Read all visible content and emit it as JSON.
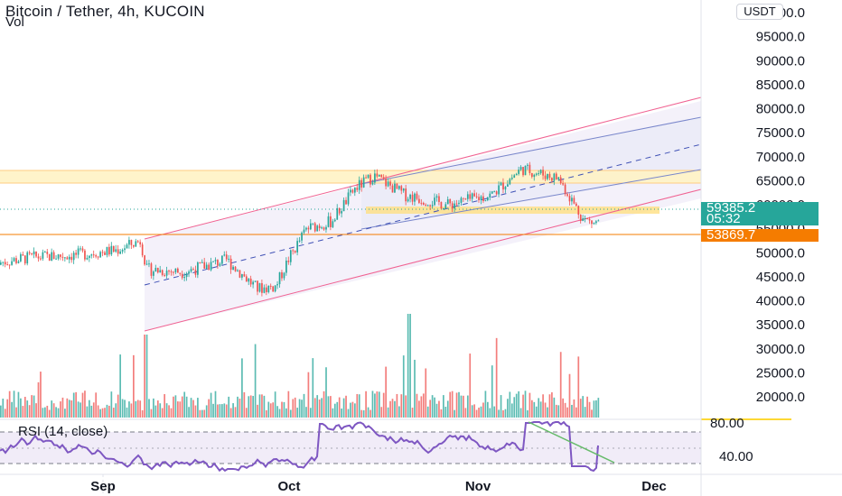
{
  "header": {
    "title": "Bitcoin / Tether, 4h, KUCOIN",
    "volume_label": "Vol",
    "currency": "USDT"
  },
  "rsi": {
    "label": "RSI (14, close)",
    "levels": [
      "80.00",
      "40.00"
    ]
  },
  "price_tags": {
    "last_price": "59385.2",
    "countdown": "05:32",
    "support_price": "53869.7"
  },
  "colors": {
    "up": "#26a69a",
    "down": "#ef5350",
    "rsi_line": "#7e57c2",
    "channel_line": "#f06292",
    "inner_channel": "#7986cb",
    "zone": "#ffe082",
    "support_line": "#f57c00",
    "trendline": "#66bb6a"
  },
  "chart_data": {
    "type": "candlestick",
    "symbol": "Bitcoin / Tether",
    "interval": "4h",
    "exchange": "KUCOIN",
    "y_ticks": [
      "100000.0",
      "95000.0",
      "90000.0",
      "85000.0",
      "80000.0",
      "75000.0",
      "70000.0",
      "65000.0",
      "60000.0",
      "55000.0",
      "50000.0",
      "45000.0",
      "40000.0",
      "35000.0",
      "30000.0",
      "25000.0",
      "20000.0"
    ],
    "ylim": [
      18000,
      102000
    ],
    "x_ticks": [
      "Sep",
      "Oct",
      "Nov",
      "Dec"
    ],
    "approx_price_path": [
      {
        "t": "Aug 13",
        "price": 47500
      },
      {
        "t": "Aug 20",
        "price": 49000
      },
      {
        "t": "Aug 27",
        "price": 49500
      },
      {
        "t": "Sep 3",
        "price": 50500
      },
      {
        "t": "Sep 7",
        "price": 52500
      },
      {
        "t": "Sep 8",
        "price": 46500
      },
      {
        "t": "Sep 14",
        "price": 46000
      },
      {
        "t": "Sep 21",
        "price": 48500
      },
      {
        "t": "Sep 26",
        "price": 42500
      },
      {
        "t": "Sep 29",
        "price": 43000
      },
      {
        "t": "Oct 1",
        "price": 48500
      },
      {
        "t": "Oct 4",
        "price": 55000
      },
      {
        "t": "Oct 8",
        "price": 56500
      },
      {
        "t": "Oct 12",
        "price": 63500
      },
      {
        "t": "Oct 15",
        "price": 66000
      },
      {
        "t": "Oct 20",
        "price": 62000
      },
      {
        "t": "Oct 27",
        "price": 60000
      },
      {
        "t": "Nov 3",
        "price": 62000
      },
      {
        "t": "Nov 8",
        "price": 67500
      },
      {
        "t": "Nov 14",
        "price": 65500
      },
      {
        "t": "Nov 18",
        "price": 57000
      },
      {
        "t": "Nov 20",
        "price": 56000
      },
      {
        "t": "Nov 22",
        "price": 59385.2
      }
    ],
    "last_price": 59385.2,
    "support_level": 53869.7,
    "resistance_zone": [
      64800,
      66800
    ],
    "secondary_zone": [
      59200,
      60000
    ],
    "rsi_approx": {
      "levels": [
        80,
        40
      ],
      "end_value": 50
    }
  }
}
